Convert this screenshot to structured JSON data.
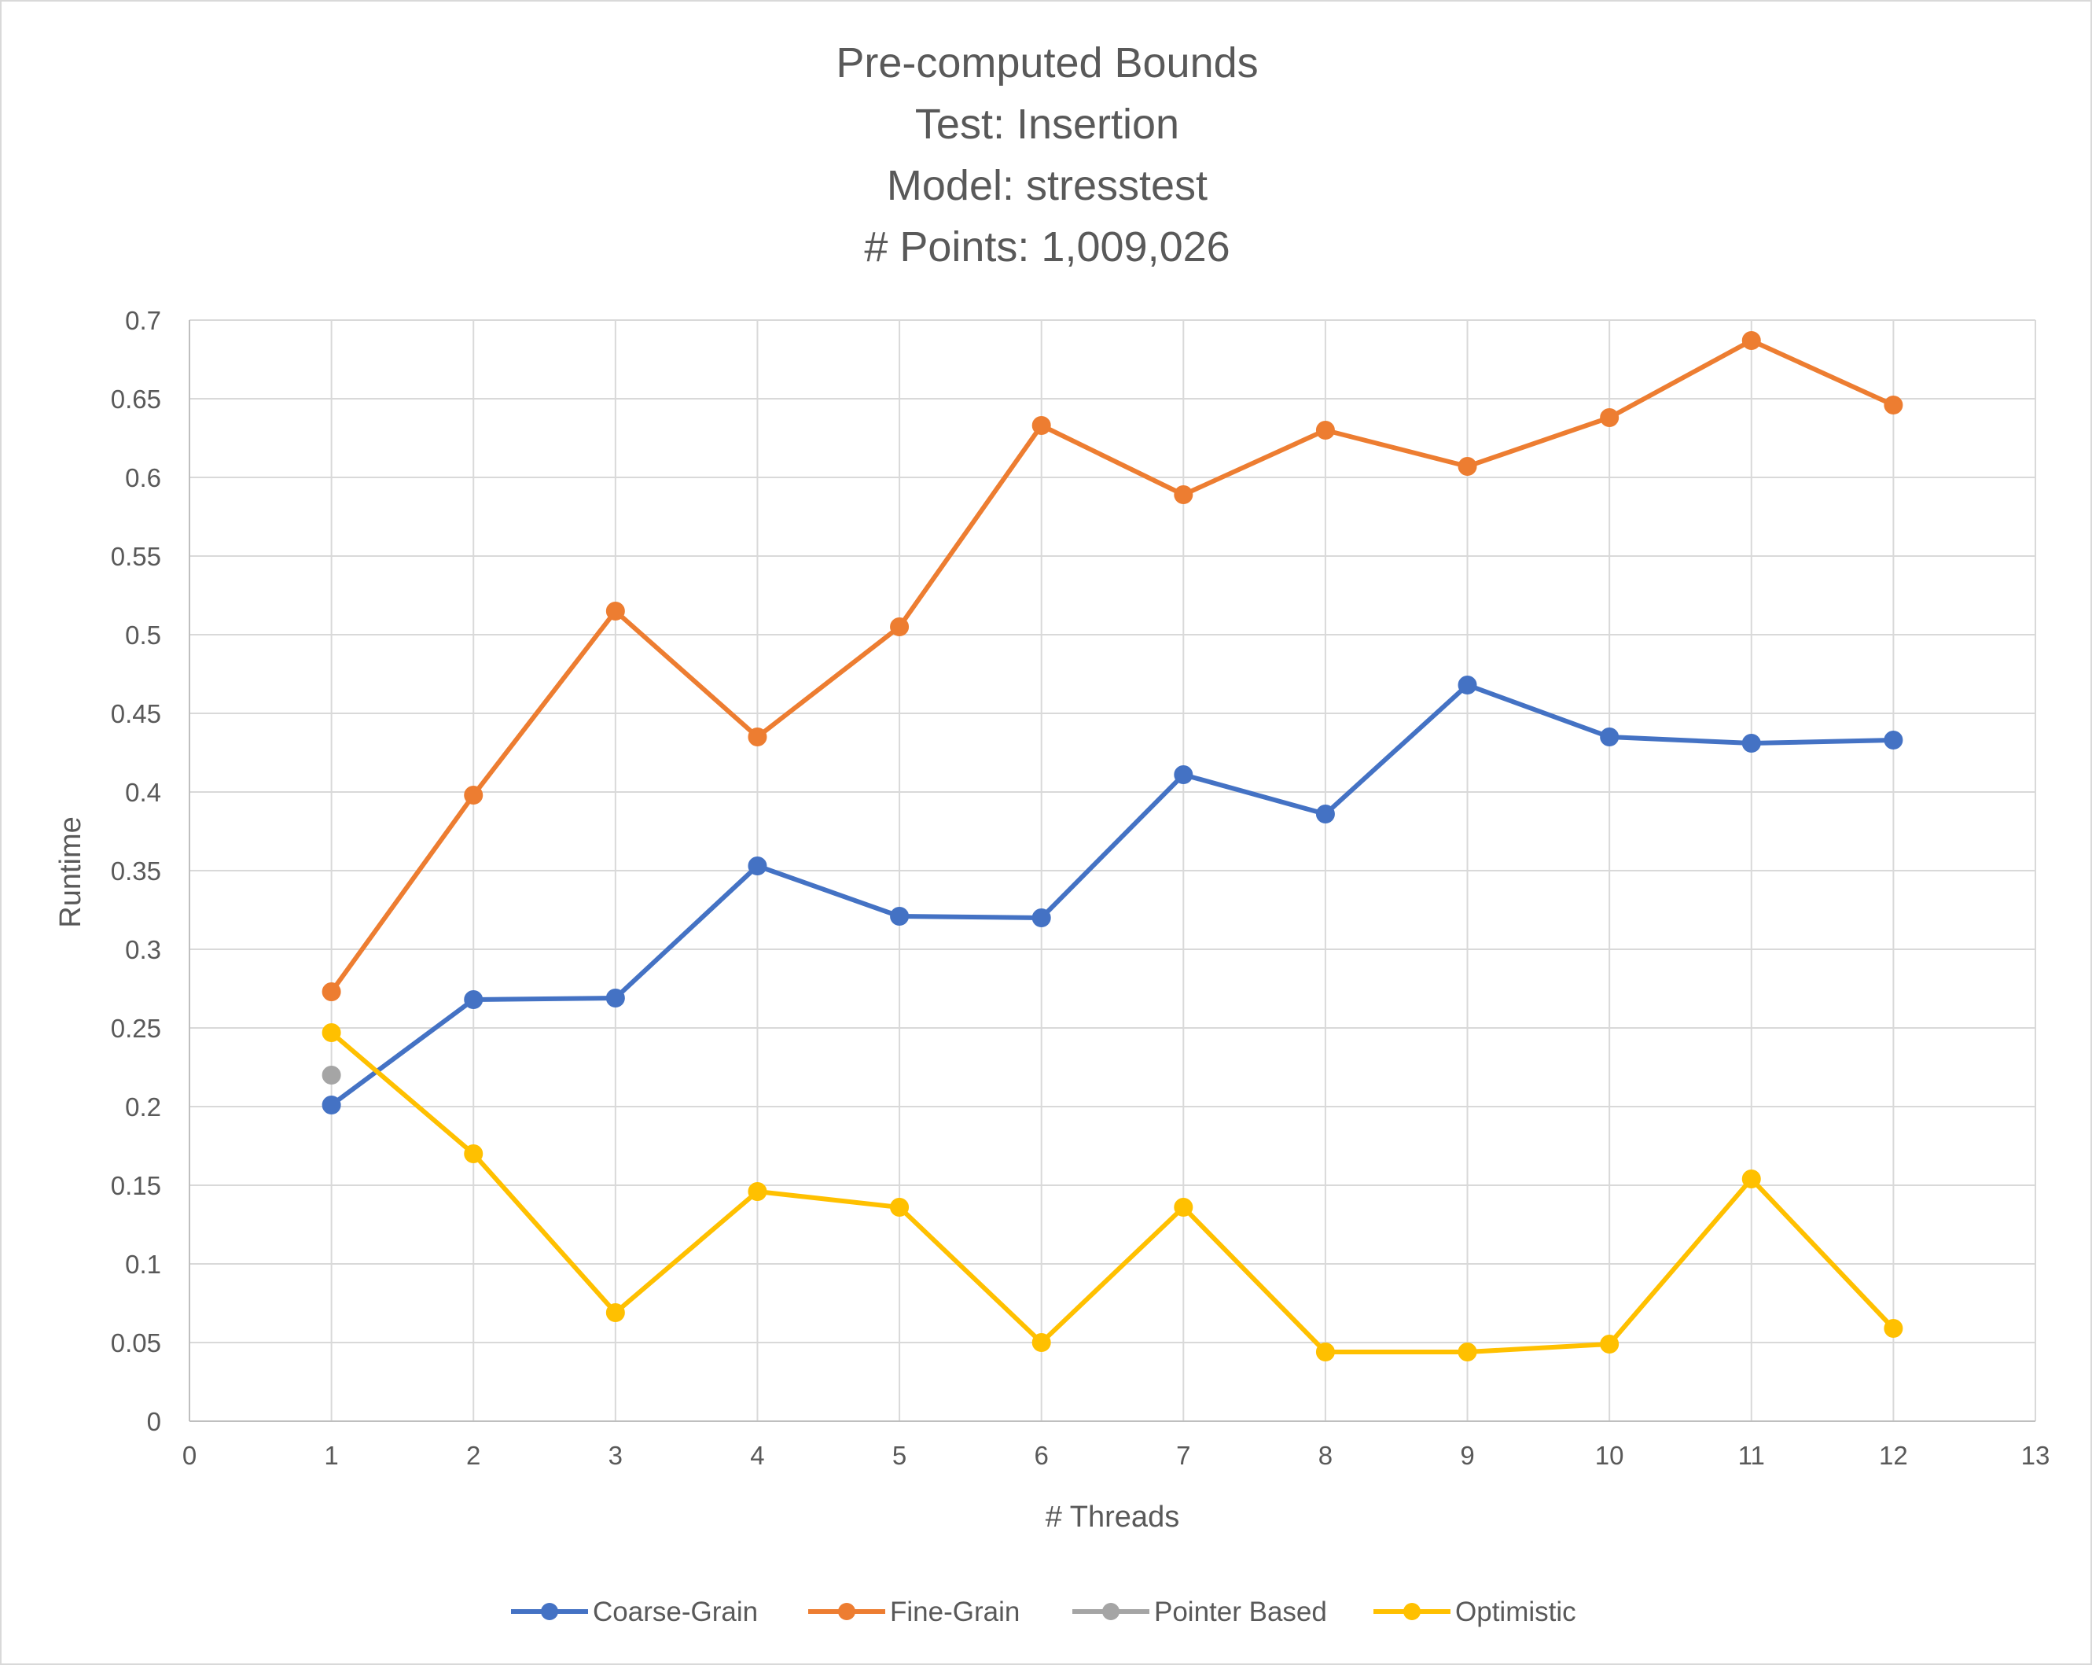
{
  "chart_data": {
    "type": "line",
    "title_lines": [
      "Pre-computed Bounds",
      "Test: Insertion",
      "Model: stresstest",
      "# Points: 1,009,026"
    ],
    "xlabel": "# Threads",
    "ylabel": "Runtime",
    "xlim": [
      0,
      13
    ],
    "ylim": [
      0,
      0.7
    ],
    "x_ticks": [
      "0",
      "1",
      "2",
      "3",
      "4",
      "5",
      "6",
      "7",
      "8",
      "9",
      "10",
      "11",
      "12",
      "13"
    ],
    "y_ticks": [
      "0",
      "0.05",
      "0.1",
      "0.15",
      "0.2",
      "0.25",
      "0.3",
      "0.35",
      "0.4",
      "0.45",
      "0.5",
      "0.55",
      "0.6",
      "0.65",
      "0.7"
    ],
    "grid": true,
    "legend_position": "bottom",
    "series": [
      {
        "name": "Coarse-Grain",
        "color": "#4472c4",
        "x": [
          1,
          2,
          3,
          4,
          5,
          6,
          7,
          8,
          9,
          10,
          11,
          12
        ],
        "values": [
          0.201,
          0.268,
          0.269,
          0.353,
          0.321,
          0.32,
          0.411,
          0.386,
          0.468,
          0.435,
          0.431,
          0.433
        ]
      },
      {
        "name": "Fine-Grain",
        "color": "#ed7d31",
        "x": [
          1,
          2,
          3,
          4,
          5,
          6,
          7,
          8,
          9,
          10,
          11,
          12
        ],
        "values": [
          0.273,
          0.398,
          0.515,
          0.435,
          0.505,
          0.633,
          0.589,
          0.63,
          0.607,
          0.638,
          0.687,
          0.646
        ]
      },
      {
        "name": "Pointer Based",
        "color": "#a5a5a5",
        "x": [
          1
        ],
        "values": [
          0.22
        ]
      },
      {
        "name": "Optimistic",
        "color": "#ffc000",
        "x": [
          1,
          2,
          3,
          4,
          5,
          6,
          7,
          8,
          9,
          10,
          11,
          12
        ],
        "values": [
          0.247,
          0.17,
          0.069,
          0.146,
          0.136,
          0.05,
          0.136,
          0.044,
          0.044,
          0.049,
          0.154,
          0.059
        ]
      }
    ]
  }
}
